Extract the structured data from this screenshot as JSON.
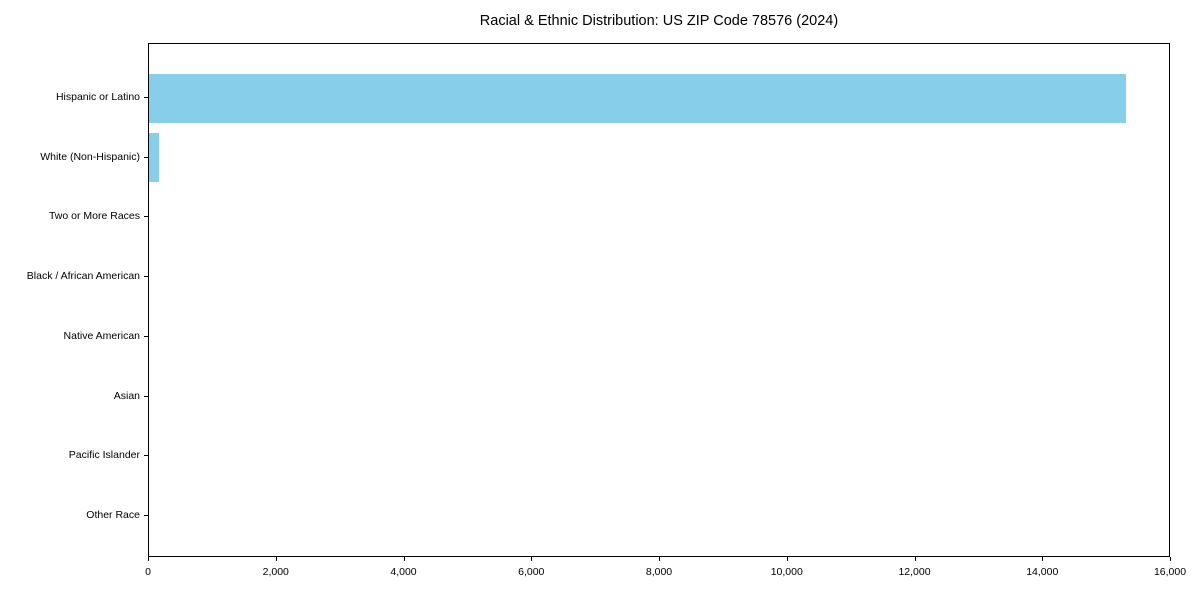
{
  "chart_data": {
    "type": "bar",
    "orientation": "horizontal",
    "title": "Racial & Ethnic Distribution: US ZIP Code 78576 (2024)",
    "categories": [
      "Hispanic or Latino",
      "White (Non-Hispanic)",
      "Two or More Races",
      "Black / African American",
      "Native American",
      "Asian",
      "Pacific Islander",
      "Other Race"
    ],
    "values": [
      15300,
      150,
      0,
      0,
      0,
      0,
      0,
      0
    ],
    "xlabel": "",
    "ylabel": "",
    "xlim": [
      0,
      16000
    ],
    "x_ticks": [
      0,
      2000,
      4000,
      6000,
      8000,
      10000,
      12000,
      14000,
      16000
    ],
    "x_tick_labels": [
      "0",
      "2,000",
      "4,000",
      "6,000",
      "8,000",
      "10,000",
      "12,000",
      "14,000",
      "16,000"
    ],
    "bar_color": "#87CEEB",
    "background_color": "#ffffff",
    "axis_color": "#000000",
    "grid": false,
    "legend": null
  }
}
